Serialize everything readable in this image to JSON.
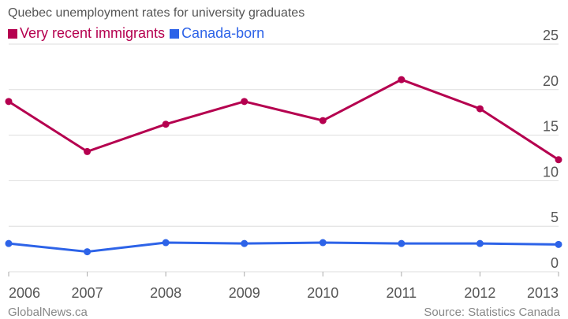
{
  "chart_data": {
    "type": "line",
    "title": "Quebec unemployment rates for university graduates",
    "categories": [
      "2006",
      "2007",
      "2008",
      "2009",
      "2010",
      "2011",
      "2012",
      "2013"
    ],
    "series": [
      {
        "name": "Very recent immigrants",
        "color": "#b5004f",
        "values": [
          18.7,
          13.2,
          16.2,
          18.7,
          16.6,
          21.1,
          17.9,
          12.3
        ]
      },
      {
        "name": "Canada-born",
        "color": "#2d63e8",
        "values": [
          3.1,
          2.2,
          3.2,
          3.1,
          3.2,
          3.1,
          3.1,
          3.0
        ]
      }
    ],
    "ylim": [
      0,
      25
    ],
    "yticks": [
      0,
      5,
      10,
      15,
      20,
      25
    ],
    "grid": true,
    "legend_position": "top-left",
    "xlabel": "",
    "ylabel": ""
  },
  "footer": {
    "credit": "GlobalNews.ca",
    "source": "Source: Statistics Canada"
  },
  "colors": {
    "grid": "#dddddd",
    "axis_text": "#555555",
    "footer_text": "#888888"
  }
}
